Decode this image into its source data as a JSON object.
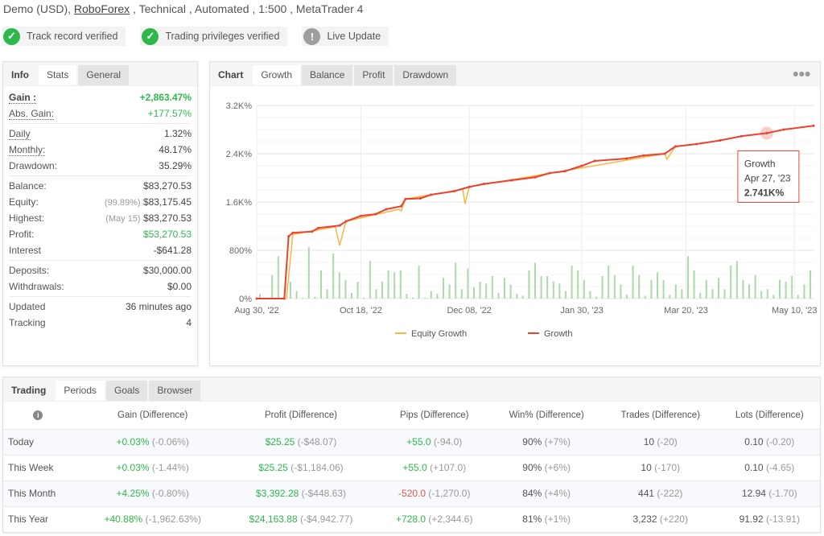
{
  "header": {
    "prefix": "Demo (USD), ",
    "broker": "RoboForex",
    "suffix": " , Technical , Automated , 1:500 , MetaTrader 4"
  },
  "badges": [
    {
      "label": "Track record verified",
      "icon": "check-circle-icon",
      "color": "#2eb84b"
    },
    {
      "label": "Trading privileges verified",
      "icon": "check-circle-icon",
      "color": "#2eb84b"
    },
    {
      "label": "Live Update",
      "icon": "exclamation-circle-icon",
      "color": "#9e9e9e"
    }
  ],
  "stats_tabs": [
    "Info",
    "Stats",
    "General"
  ],
  "stats": [
    [
      {
        "label": "Gain :",
        "value": "+2,863.47%",
        "cls": "g",
        "bold": true,
        "dotted": true
      },
      {
        "label": "Abs. Gain:",
        "value": "+177.57%",
        "cls": "g",
        "dotted": true
      }
    ],
    [
      {
        "label": "Daily",
        "value": "1.32%",
        "dotted": true
      },
      {
        "label": "Monthly:",
        "value": "48.17%",
        "dotted": true
      },
      {
        "label": "Drawdown:",
        "value": "35.29%"
      }
    ],
    [
      {
        "label": "Balance:",
        "value": "$83,270.53"
      },
      {
        "label": "Equity:",
        "note": "(99.89%)",
        "value": "$83,175.45"
      },
      {
        "label": "Highest:",
        "note": "(May 15)",
        "value": "$83,270.53"
      },
      {
        "label": "Profit:",
        "value": "$53,270.53",
        "cls": "g"
      },
      {
        "label": "Interest",
        "value": "-$641.28"
      }
    ],
    [
      {
        "label": "Deposits:",
        "value": "$30,000.00"
      },
      {
        "label": "Withdrawals:",
        "value": "$0.00"
      }
    ],
    [
      {
        "label": "Updated",
        "value": "36 minutes ago"
      },
      {
        "label": "Tracking",
        "value": "4"
      }
    ]
  ],
  "chart_tabs": [
    "Chart",
    "Growth",
    "Balance",
    "Profit",
    "Drawdown"
  ],
  "chart_menu_icon": "more-dots-icon",
  "chart_data": {
    "type": "line",
    "y_ticks": [
      "0%",
      "800%",
      "1.6K%",
      "2.4K%",
      "3.2K%"
    ],
    "ylim": [
      0,
      3200
    ],
    "x_ticks": [
      "Aug 30, '22",
      "Oct 18, '22",
      "Dec 08, '22",
      "Jan 30, '23",
      "Mar 20, '23",
      "May 10, '23"
    ],
    "x_tick_dates": [
      "2022-08-30",
      "2022-10-18",
      "2022-12-08",
      "2023-01-30",
      "2023-03-20",
      "2023-05-10"
    ],
    "xlim": [
      "2022-08-30",
      "2023-05-19"
    ],
    "grid": true,
    "legend_position": "bottom",
    "series": [
      {
        "name": "Growth",
        "color": "#e8432f",
        "points": [
          [
            "2022-08-30",
            0
          ],
          [
            "2022-09-12",
            0
          ],
          [
            "2022-09-14",
            1030
          ],
          [
            "2022-09-16",
            1090
          ],
          [
            "2022-09-25",
            1110
          ],
          [
            "2022-09-28",
            1170
          ],
          [
            "2022-10-08",
            1210
          ],
          [
            "2022-10-11",
            1280
          ],
          [
            "2022-10-18",
            1370
          ],
          [
            "2022-10-25",
            1400
          ],
          [
            "2022-10-30",
            1480
          ],
          [
            "2022-11-06",
            1530
          ],
          [
            "2022-11-08",
            1650
          ],
          [
            "2022-11-15",
            1660
          ],
          [
            "2022-11-20",
            1720
          ],
          [
            "2022-12-01",
            1780
          ],
          [
            "2022-12-08",
            1850
          ],
          [
            "2022-12-15",
            1900
          ],
          [
            "2022-12-28",
            1960
          ],
          [
            "2023-01-08",
            2010
          ],
          [
            "2023-01-15",
            2080
          ],
          [
            "2023-01-22",
            2110
          ],
          [
            "2023-01-30",
            2200
          ],
          [
            "2023-02-05",
            2280
          ],
          [
            "2023-02-20",
            2320
          ],
          [
            "2023-02-28",
            2370
          ],
          [
            "2023-03-10",
            2400
          ],
          [
            "2023-03-15",
            2520
          ],
          [
            "2023-03-25",
            2560
          ],
          [
            "2023-04-05",
            2620
          ],
          [
            "2023-04-15",
            2690
          ],
          [
            "2023-04-27",
            2741
          ],
          [
            "2023-05-05",
            2800
          ],
          [
            "2023-05-19",
            2863
          ]
        ]
      },
      {
        "name": "Equity Growth",
        "color": "#f7b744",
        "points": [
          [
            "2022-09-13",
            0
          ],
          [
            "2022-09-16",
            1060
          ],
          [
            "2022-10-06",
            1190
          ],
          [
            "2022-10-08",
            880
          ],
          [
            "2022-10-11",
            1280
          ],
          [
            "2022-11-05",
            1480
          ],
          [
            "2022-11-06",
            1450
          ],
          [
            "2022-11-08",
            1650
          ],
          [
            "2022-12-05",
            1810
          ],
          [
            "2022-12-06",
            1570
          ],
          [
            "2022-12-08",
            1850
          ],
          [
            "2023-03-10",
            2400
          ],
          [
            "2023-03-11",
            2310
          ],
          [
            "2023-03-15",
            2520
          ]
        ]
      }
    ],
    "daily_bars": [
      5,
      1,
      25,
      45,
      3,
      18,
      8,
      1,
      55,
      2,
      30,
      10,
      48,
      28,
      20,
      6,
      18,
      1,
      40,
      10,
      18,
      30,
      28,
      30,
      5,
      1,
      35,
      1,
      8,
      5,
      22,
      15,
      38,
      10,
      32,
      12,
      18,
      16,
      24,
      6,
      22,
      15,
      5,
      3,
      30,
      38,
      24,
      24,
      18,
      16,
      8,
      35,
      30,
      20,
      8,
      2,
      24,
      35,
      25,
      15,
      4,
      35,
      25,
      3,
      20,
      28,
      20,
      4,
      15,
      10,
      45,
      30,
      6,
      20,
      10,
      22,
      10,
      35,
      40,
      20,
      15,
      25,
      8,
      10,
      4,
      20,
      18,
      24,
      4,
      15,
      30
    ]
  },
  "tooltip": {
    "title": "Growth",
    "date": "Apr 27, '23",
    "value": "2.741K%"
  },
  "periods_tabs": [
    "Trading",
    "Periods",
    "Goals",
    "Browser"
  ],
  "periods": {
    "headers": [
      "Gain (Difference)",
      "Profit (Difference)",
      "Pips (Difference)",
      "Win% (Difference)",
      "Trades (Difference)",
      "Lots (Difference)"
    ],
    "info_icon": "info-circle-icon",
    "rows": [
      {
        "label": "Today",
        "cells": [
          [
            "+0.03%",
            "(-0.06%)",
            "g"
          ],
          [
            "$25.25",
            "(-$48.07)",
            "g"
          ],
          [
            "+55.0",
            "(-94.0)",
            "g"
          ],
          [
            "90%",
            "(+7%)",
            ""
          ],
          [
            "10",
            "(-20)",
            ""
          ],
          [
            "0.10",
            "(-0.20)",
            ""
          ]
        ]
      },
      {
        "label": "This Week",
        "cells": [
          [
            "+0.03%",
            "(-1.44%)",
            "g"
          ],
          [
            "$25.25",
            "(-$1,184.06)",
            "g"
          ],
          [
            "+55.0",
            "(+107.0)",
            "g"
          ],
          [
            "90%",
            "(+6%)",
            ""
          ],
          [
            "10",
            "(-170)",
            ""
          ],
          [
            "0.10",
            "(-4.65)",
            ""
          ]
        ]
      },
      {
        "label": "This Month",
        "cells": [
          [
            "+4.25%",
            "(-0.80%)",
            "g"
          ],
          [
            "$3,392.28",
            "(-$448.63)",
            "g"
          ],
          [
            "-520.0",
            "(-1,270.0)",
            "r"
          ],
          [
            "84%",
            "(+4%)",
            ""
          ],
          [
            "441",
            "(-222)",
            ""
          ],
          [
            "12.94",
            "(-1.70)",
            ""
          ]
        ]
      },
      {
        "label": "This Year",
        "cells": [
          [
            "+40.88%",
            "(-1,962.63%)",
            "g"
          ],
          [
            "$24,163.88",
            "(-$4,942.77)",
            "g"
          ],
          [
            "+728.0",
            "(+2,344.6)",
            "g"
          ],
          [
            "81%",
            "(+1%)",
            ""
          ],
          [
            "3,232",
            "(+220)",
            ""
          ],
          [
            "91.92",
            "(-13.91)",
            ""
          ]
        ]
      }
    ]
  }
}
